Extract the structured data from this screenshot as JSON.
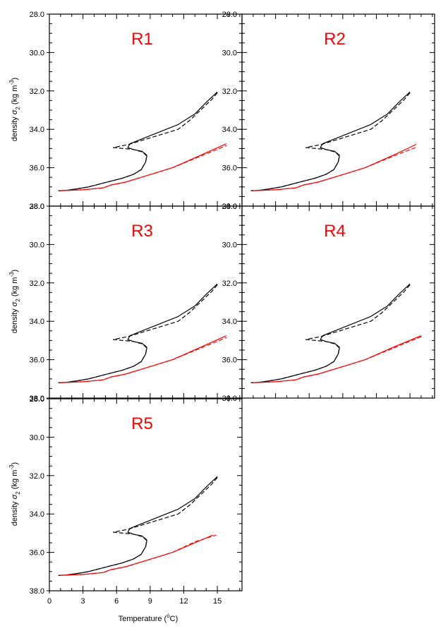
{
  "colors": {
    "ref": "#000000",
    "warm": "#ff0000",
    "title": "#ff0000",
    "axis": "#000000"
  },
  "labels": {
    "ylabel_main": "density ",
    "ylabel_sigma": "σ",
    "ylabel_sub": "2",
    "ylabel_units_open": " (kg m",
    "ylabel_sup": "-3",
    "ylabel_units_close": ")",
    "xlabel_main": "Temperature (",
    "xlabel_sup": "o",
    "xlabel_end": "C)"
  },
  "chart_data": {
    "type": "line",
    "xlim": [
      0,
      17.2
    ],
    "ylim": [
      38.0,
      28.0
    ],
    "y_inverted": true,
    "xticks": [
      0,
      3,
      6,
      9,
      12,
      15
    ],
    "yticks": [
      28.0,
      30.0,
      32.0,
      34.0,
      36.0,
      38.0
    ],
    "ytick_labels": [
      "28.0",
      "30.0",
      "32.0",
      "34.0",
      "36.0",
      "38.0"
    ],
    "panels": [
      {
        "title": "R1",
        "series": [
          {
            "style": "ref-solid",
            "x": [
              0.8,
              1.5,
              2.5,
              3.5,
              4.5,
              5.5,
              6.5,
              7.5,
              8.2,
              8.6,
              8.7,
              8.3,
              7.5,
              7.0,
              7.2,
              11.5,
              13.0,
              14.0,
              15.0
            ],
            "y": [
              37.2,
              37.18,
              37.1,
              37.0,
              36.85,
              36.7,
              36.55,
              36.35,
              36.1,
              35.7,
              35.4,
              35.15,
              35.05,
              34.95,
              34.75,
              33.75,
              33.2,
              32.6,
              32.05
            ]
          },
          {
            "style": "ref-dashed",
            "x": [
              0.8,
              1.5,
              2.5,
              3.5,
              4.5,
              5.5,
              6.5,
              7.5,
              8.2,
              8.6,
              8.7,
              8.4,
              7.5,
              5.7,
              7.0,
              11.5,
              12.5,
              13.5,
              14.5,
              15.0
            ],
            "y": [
              37.2,
              37.18,
              37.1,
              37.0,
              36.85,
              36.7,
              36.55,
              36.35,
              36.1,
              35.7,
              35.35,
              35.2,
              35.05,
              34.95,
              34.8,
              34.0,
              33.55,
              33.0,
              32.45,
              32.1
            ]
          },
          {
            "style": "warm-solid",
            "x": [
              1.0,
              3.0,
              4.8,
              5.5,
              6.8,
              8.5,
              11.0,
              13.5,
              15.8
            ],
            "y": [
              37.2,
              37.15,
              37.05,
              36.9,
              36.75,
              36.45,
              36.0,
              35.35,
              34.75
            ]
          },
          {
            "style": "warm-dashed",
            "x": [
              1.0,
              3.0,
              4.8,
              5.5,
              6.8,
              8.5,
              11.0,
              13.5,
              15.8
            ],
            "y": [
              37.2,
              37.15,
              37.05,
              36.9,
              36.75,
              36.45,
              36.0,
              35.4,
              34.85
            ]
          }
        ]
      },
      {
        "title": "R2",
        "series": [
          {
            "style": "ref-solid",
            "x": [
              0.8,
              1.5,
              2.5,
              3.5,
              4.5,
              5.5,
              6.5,
              7.5,
              8.2,
              8.6,
              8.7,
              8.3,
              7.5,
              7.0,
              7.2,
              11.5,
              13.0,
              14.0,
              15.0
            ],
            "y": [
              37.2,
              37.18,
              37.1,
              37.0,
              36.85,
              36.7,
              36.55,
              36.35,
              36.1,
              35.7,
              35.4,
              35.15,
              35.05,
              34.95,
              34.75,
              33.75,
              33.2,
              32.6,
              32.05
            ]
          },
          {
            "style": "ref-dashed",
            "x": [
              0.8,
              1.5,
              2.5,
              3.5,
              4.5,
              5.5,
              6.5,
              7.5,
              8.2,
              8.6,
              8.7,
              8.4,
              7.5,
              5.7,
              7.0,
              11.5,
              12.5,
              13.5,
              14.5,
              15.0
            ],
            "y": [
              37.2,
              37.18,
              37.1,
              37.0,
              36.85,
              36.7,
              36.55,
              36.35,
              36.1,
              35.7,
              35.35,
              35.2,
              35.05,
              34.95,
              34.8,
              34.0,
              33.55,
              33.0,
              32.45,
              32.1
            ]
          },
          {
            "style": "warm-solid",
            "x": [
              1.0,
              3.0,
              4.8,
              5.5,
              6.8,
              8.5,
              11.0,
              13.5,
              15.5,
              15.5
            ],
            "y": [
              37.2,
              37.15,
              37.05,
              36.9,
              36.75,
              36.45,
              36.0,
              35.35,
              34.8,
              34.75
            ]
          },
          {
            "style": "warm-dashed",
            "x": [
              1.0,
              3.0,
              4.8,
              5.5,
              6.8,
              8.5,
              11.0,
              13.5,
              15.5
            ],
            "y": [
              37.2,
              37.15,
              37.05,
              36.9,
              36.75,
              36.45,
              36.0,
              35.4,
              34.95
            ]
          }
        ]
      },
      {
        "title": "R3",
        "series": [
          {
            "style": "ref-solid",
            "x": [
              0.8,
              1.5,
              2.5,
              3.5,
              4.5,
              5.5,
              6.5,
              7.5,
              8.2,
              8.6,
              8.7,
              8.3,
              7.5,
              7.0,
              7.2,
              11.5,
              13.0,
              14.0,
              15.0
            ],
            "y": [
              37.2,
              37.18,
              37.1,
              37.0,
              36.85,
              36.7,
              36.55,
              36.35,
              36.1,
              35.7,
              35.4,
              35.15,
              35.05,
              34.95,
              34.75,
              33.75,
              33.2,
              32.6,
              32.05
            ]
          },
          {
            "style": "ref-dashed",
            "x": [
              0.8,
              1.5,
              2.5,
              3.5,
              4.5,
              5.5,
              6.5,
              7.5,
              8.2,
              8.6,
              8.7,
              8.4,
              7.5,
              5.7,
              7.0,
              11.5,
              12.5,
              13.5,
              14.5,
              15.0
            ],
            "y": [
              37.2,
              37.18,
              37.1,
              37.0,
              36.85,
              36.7,
              36.55,
              36.35,
              36.1,
              35.7,
              35.35,
              35.2,
              35.05,
              34.95,
              34.8,
              34.0,
              33.55,
              33.0,
              32.45,
              32.1
            ]
          },
          {
            "style": "warm-solid",
            "x": [
              1.0,
              3.0,
              4.8,
              5.5,
              6.8,
              8.5,
              11.0,
              13.5,
              15.8
            ],
            "y": [
              37.2,
              37.15,
              37.05,
              36.9,
              36.75,
              36.45,
              36.0,
              35.35,
              34.75
            ]
          },
          {
            "style": "warm-dashed",
            "x": [
              1.0,
              3.0,
              4.8,
              5.5,
              6.8,
              8.5,
              11.0,
              13.5,
              15.8
            ],
            "y": [
              37.2,
              37.15,
              37.05,
              36.9,
              36.75,
              36.45,
              36.0,
              35.4,
              34.85
            ]
          }
        ]
      },
      {
        "title": "R4",
        "series": [
          {
            "style": "ref-solid",
            "x": [
              0.8,
              1.5,
              2.5,
              3.5,
              4.5,
              5.5,
              6.5,
              7.5,
              8.2,
              8.6,
              8.7,
              8.3,
              7.5,
              7.0,
              7.2,
              11.5,
              13.0,
              14.0,
              15.0
            ],
            "y": [
              37.2,
              37.18,
              37.1,
              37.0,
              36.85,
              36.7,
              36.55,
              36.35,
              36.1,
              35.7,
              35.4,
              35.15,
              35.05,
              34.95,
              34.75,
              33.75,
              33.2,
              32.6,
              32.05
            ]
          },
          {
            "style": "ref-dashed",
            "x": [
              0.8,
              1.5,
              2.5,
              3.5,
              4.5,
              5.5,
              6.5,
              7.5,
              8.2,
              8.6,
              8.7,
              8.4,
              7.5,
              5.7,
              7.0,
              11.5,
              12.5,
              13.5,
              14.5,
              15.0
            ],
            "y": [
              37.2,
              37.18,
              37.1,
              37.0,
              36.85,
              36.7,
              36.55,
              36.35,
              36.1,
              35.7,
              35.35,
              35.2,
              35.05,
              34.95,
              34.8,
              34.0,
              33.55,
              33.0,
              32.45,
              32.1
            ]
          },
          {
            "style": "warm-solid",
            "x": [
              1.0,
              3.0,
              4.8,
              5.5,
              6.8,
              8.5,
              11.0,
              13.5,
              16.0
            ],
            "y": [
              37.2,
              37.15,
              37.05,
              36.9,
              36.75,
              36.45,
              36.0,
              35.35,
              34.75
            ]
          },
          {
            "style": "warm-dashed",
            "x": [
              1.0,
              3.0,
              4.8,
              5.5,
              6.8,
              8.5,
              11.0,
              13.5,
              16.2
            ],
            "y": [
              37.2,
              37.15,
              37.05,
              36.9,
              36.75,
              36.45,
              36.0,
              35.4,
              34.75
            ]
          }
        ]
      },
      {
        "title": "R5",
        "series": [
          {
            "style": "ref-solid",
            "x": [
              0.8,
              1.5,
              2.5,
              3.5,
              4.5,
              5.5,
              6.5,
              7.5,
              8.2,
              8.6,
              8.7,
              8.3,
              7.5,
              7.0,
              7.2,
              11.5,
              13.0,
              14.0,
              15.0
            ],
            "y": [
              37.2,
              37.18,
              37.1,
              37.0,
              36.85,
              36.7,
              36.55,
              36.35,
              36.1,
              35.7,
              35.4,
              35.15,
              35.05,
              34.95,
              34.75,
              33.75,
              33.2,
              32.6,
              32.05
            ]
          },
          {
            "style": "ref-dashed",
            "x": [
              0.8,
              1.5,
              2.5,
              3.5,
              4.5,
              5.5,
              6.5,
              7.5,
              8.2,
              8.6,
              8.7,
              8.4,
              7.5,
              5.7,
              7.0,
              11.5,
              12.5,
              13.5,
              14.5,
              15.0
            ],
            "y": [
              37.2,
              37.18,
              37.1,
              37.0,
              36.85,
              36.7,
              36.55,
              36.35,
              36.1,
              35.7,
              35.35,
              35.2,
              35.05,
              34.95,
              34.8,
              34.0,
              33.55,
              33.0,
              32.45,
              32.1
            ]
          },
          {
            "style": "warm-solid",
            "x": [
              1.0,
              3.0,
              4.8,
              5.5,
              6.8,
              8.5,
              11.0,
              13.0,
              14.6
            ],
            "y": [
              37.2,
              37.15,
              37.05,
              36.9,
              36.75,
              36.45,
              36.0,
              35.5,
              35.1
            ]
          },
          {
            "style": "warm-dashed",
            "x": [
              1.0,
              3.0,
              4.8,
              5.5,
              6.8,
              8.5,
              11.0,
              13.0,
              14.9
            ],
            "y": [
              37.2,
              37.15,
              37.05,
              36.9,
              36.75,
              36.45,
              36.0,
              35.45,
              35.1
            ]
          }
        ]
      }
    ]
  }
}
